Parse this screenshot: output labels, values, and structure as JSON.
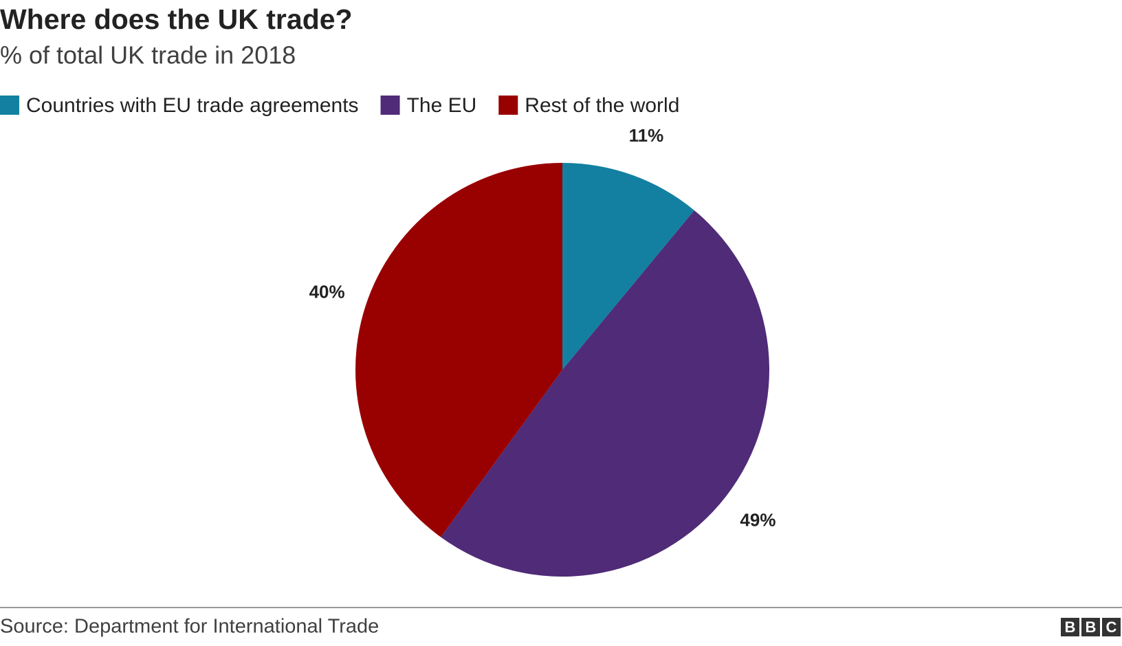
{
  "chart_data": {
    "type": "pie",
    "title": "Where does the UK trade?",
    "subtitle": "% of total UK trade in 2018",
    "categories": [
      "Countries with EU trade agreements",
      "The EU",
      "Rest of the world"
    ],
    "values": [
      11,
      49,
      40
    ],
    "value_labels": [
      "11%",
      "49%",
      "40%"
    ],
    "colors": [
      "#1380a1",
      "#4f2b78",
      "#990000"
    ],
    "source": "Source: Department for International Trade",
    "logo": [
      "B",
      "B",
      "C"
    ]
  }
}
